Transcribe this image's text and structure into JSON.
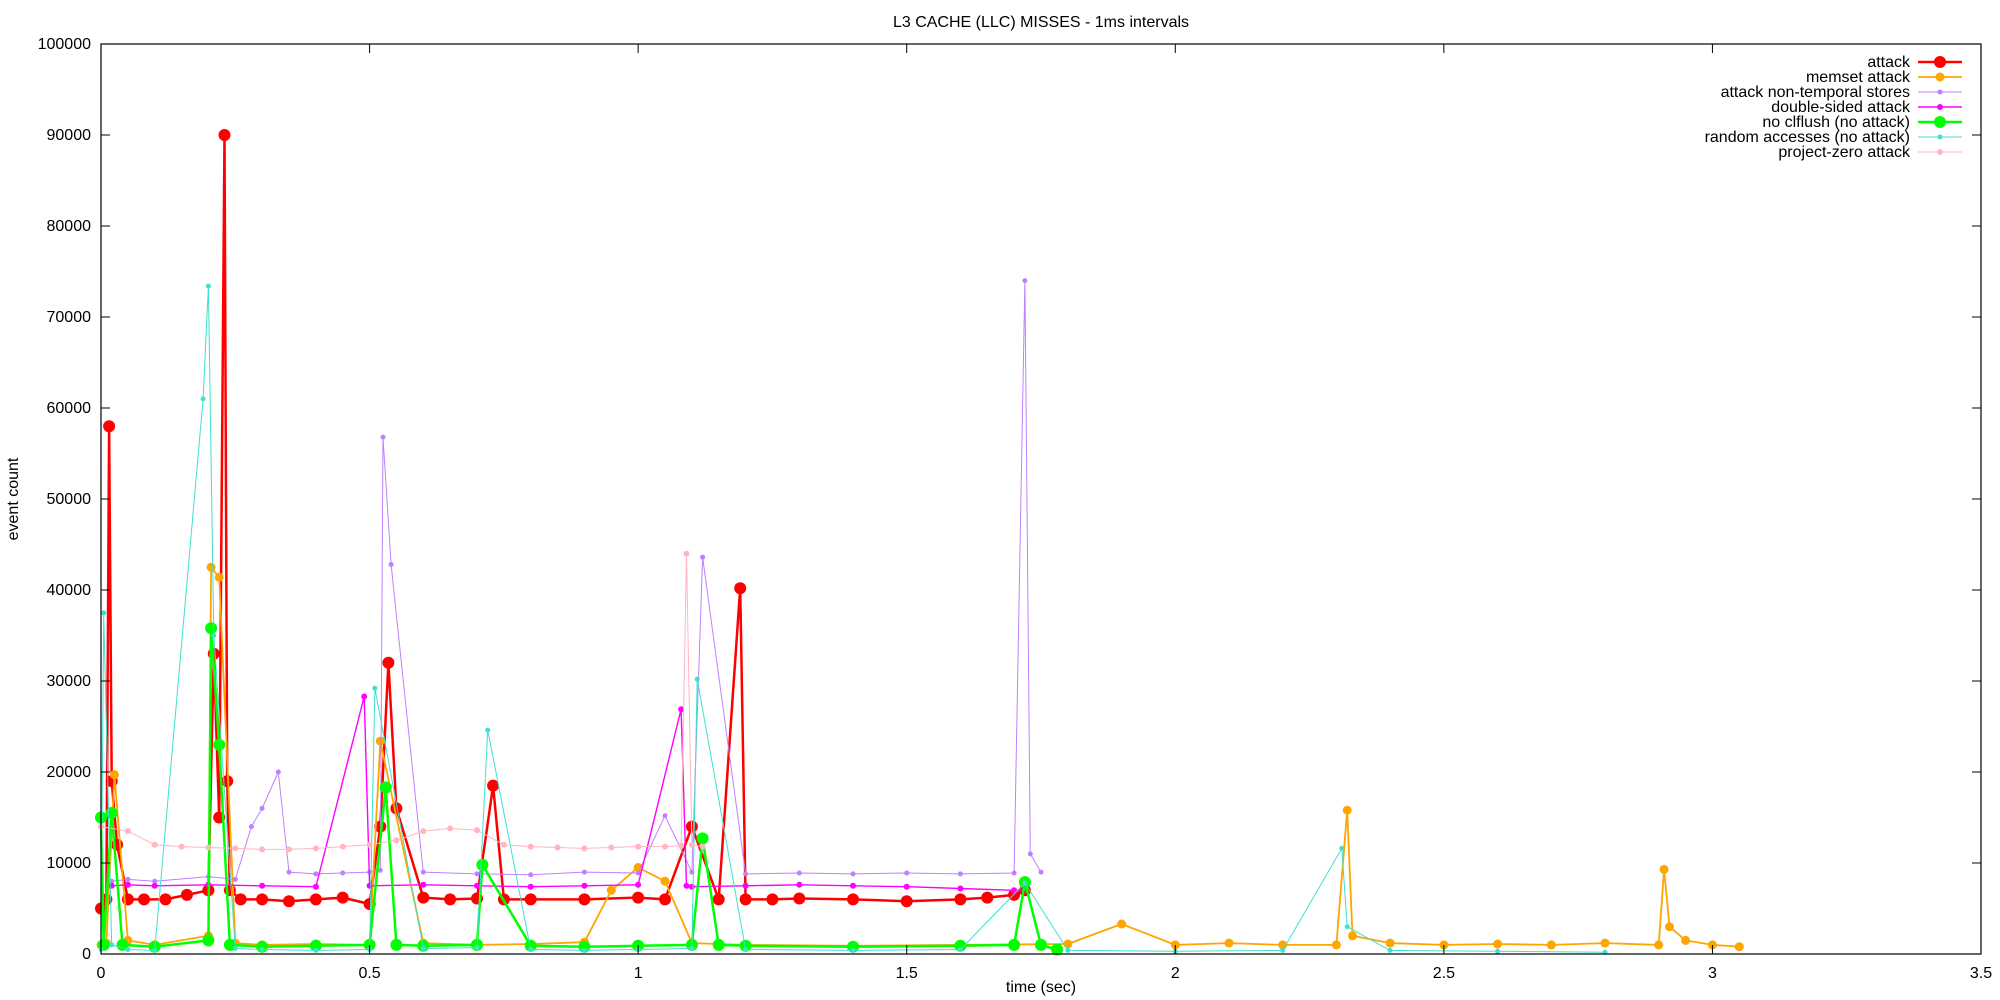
{
  "chart_data": {
    "type": "line",
    "title": "L3 CACHE (LLC) MISSES - 1ms intervals",
    "xlabel": "time (sec)",
    "ylabel": "event count",
    "xlim": [
      0,
      3.5
    ],
    "ylim": [
      0,
      100000
    ],
    "xticks": [
      0,
      0.5,
      1,
      1.5,
      2,
      2.5,
      3,
      3.5
    ],
    "xtick_labels": [
      "0",
      "0.5",
      "1",
      "1.5",
      "2",
      "2.5",
      "3",
      "3.5"
    ],
    "yticks": [
      0,
      10000,
      20000,
      30000,
      40000,
      50000,
      60000,
      70000,
      80000,
      90000,
      100000
    ],
    "ytick_labels": [
      "0",
      "10000",
      "20000",
      "30000",
      "40000",
      "50000",
      "60000",
      "70000",
      "80000",
      "90000",
      "100000"
    ],
    "grid": false,
    "legend_position": "top-right",
    "series": [
      {
        "name": "attack",
        "color": "#ff0000",
        "x": [
          0.0,
          0.01,
          0.015,
          0.02,
          0.03,
          0.05,
          0.08,
          0.12,
          0.16,
          0.2,
          0.21,
          0.22,
          0.23,
          0.235,
          0.24,
          0.26,
          0.3,
          0.35,
          0.4,
          0.45,
          0.5,
          0.52,
          0.535,
          0.55,
          0.6,
          0.65,
          0.7,
          0.73,
          0.75,
          0.8,
          0.9,
          1.0,
          1.05,
          1.1,
          1.15,
          1.19,
          1.2,
          1.25,
          1.3,
          1.4,
          1.5,
          1.6,
          1.65,
          1.7,
          1.72
        ],
        "y": [
          5000,
          6000,
          58000,
          19000,
          12000,
          6000,
          6000,
          6000,
          6500,
          7000,
          33000,
          15000,
          90000,
          19000,
          7000,
          6000,
          6000,
          5800,
          6000,
          6200,
          5500,
          14000,
          32000,
          16000,
          6200,
          6000,
          6100,
          18500,
          6000,
          6000,
          6000,
          6200,
          6000,
          14000,
          6000,
          40200,
          6000,
          6000,
          6100,
          6000,
          5800,
          6000,
          6200,
          6500,
          7000
        ]
      },
      {
        "name": "memset attack",
        "color": "#ffa500",
        "x": [
          0.0,
          0.01,
          0.025,
          0.05,
          0.1,
          0.2,
          0.205,
          0.22,
          0.25,
          0.3,
          0.4,
          0.5,
          0.52,
          0.6,
          0.7,
          0.8,
          0.9,
          0.95,
          1.0,
          1.05,
          1.1,
          1.2,
          1.4,
          1.6,
          1.8,
          1.9,
          2.0,
          2.1,
          2.2,
          2.3,
          2.32,
          2.33,
          2.4,
          2.5,
          2.6,
          2.7,
          2.8,
          2.9,
          2.91,
          2.92,
          2.95,
          3.0,
          3.05
        ],
        "y": [
          1000,
          1200,
          19700,
          1500,
          1000,
          2000,
          42500,
          41400,
          1200,
          1000,
          1100,
          1000,
          23400,
          1200,
          1000,
          1100,
          1300,
          7000,
          9500,
          8000,
          1200,
          1000,
          900,
          1000,
          1100,
          3300,
          1000,
          1200,
          1000,
          1000,
          15800,
          2000,
          1200,
          1000,
          1100,
          1000,
          1200,
          1000,
          9300,
          3000,
          1500,
          1000,
          800
        ]
      },
      {
        "name": "attack non-temporal stores",
        "color": "#bf7fff",
        "x": [
          0.02,
          0.05,
          0.1,
          0.2,
          0.25,
          0.28,
          0.3,
          0.33,
          0.35,
          0.4,
          0.45,
          0.5,
          0.52,
          0.525,
          0.54,
          0.6,
          0.7,
          0.8,
          0.9,
          1.0,
          1.05,
          1.1,
          1.12,
          1.2,
          1.3,
          1.4,
          1.5,
          1.6,
          1.7,
          1.72,
          1.73,
          1.75
        ],
        "y": [
          8000,
          8200,
          8000,
          8500,
          8200,
          14000,
          16000,
          20000,
          9000,
          8800,
          8900,
          9000,
          9200,
          56800,
          42800,
          9000,
          8800,
          8700,
          9000,
          8900,
          15200,
          9000,
          43600,
          8800,
          8900,
          8800,
          8900,
          8800,
          8900,
          74000,
          11000,
          9000
        ]
      },
      {
        "name": "double-sided attack",
        "color": "#ff00ff",
        "x": [
          0.02,
          0.05,
          0.1,
          0.2,
          0.3,
          0.4,
          0.49,
          0.5,
          0.6,
          0.7,
          0.8,
          0.9,
          1.0,
          1.08,
          1.09,
          1.1,
          1.2,
          1.3,
          1.4,
          1.5,
          1.6,
          1.7,
          1.72
        ],
        "y": [
          7500,
          7600,
          7500,
          7600,
          7500,
          7400,
          28300,
          7500,
          7600,
          7500,
          7400,
          7500,
          7600,
          26900,
          7500,
          7400,
          7500,
          7600,
          7500,
          7400,
          7200,
          7000,
          7100
        ]
      },
      {
        "name": "no clflush (no attack)",
        "color": "#00ff00",
        "x": [
          0.0,
          0.005,
          0.02,
          0.04,
          0.1,
          0.2,
          0.205,
          0.22,
          0.24,
          0.3,
          0.4,
          0.5,
          0.53,
          0.55,
          0.6,
          0.7,
          0.71,
          0.8,
          0.9,
          1.0,
          1.1,
          1.12,
          1.15,
          1.2,
          1.4,
          1.6,
          1.7,
          1.72,
          1.75,
          1.78
        ],
        "y": [
          15000,
          1000,
          15500,
          1000,
          800,
          1500,
          35800,
          23000,
          1000,
          800,
          900,
          1000,
          18300,
          1000,
          900,
          1000,
          9800,
          900,
          800,
          900,
          1000,
          12700,
          1000,
          900,
          800,
          900,
          1000,
          7900,
          1000,
          500
        ]
      },
      {
        "name": "random accesses (no attack)",
        "color": "#40e0d0",
        "x": [
          0.0,
          0.005,
          0.02,
          0.05,
          0.1,
          0.19,
          0.2,
          0.21,
          0.25,
          0.3,
          0.4,
          0.5,
          0.51,
          0.6,
          0.7,
          0.72,
          0.8,
          0.9,
          1.0,
          1.1,
          1.11,
          1.2,
          1.4,
          1.6,
          1.72,
          1.8,
          2.0,
          2.2,
          2.31,
          2.32,
          2.4,
          2.6,
          2.8
        ],
        "y": [
          500,
          37500,
          1000,
          500,
          400,
          61000,
          73400,
          35000,
          600,
          500,
          400,
          500,
          29200,
          600,
          700,
          24600,
          500,
          400,
          500,
          600,
          30200,
          500,
          400,
          500,
          7800,
          400,
          300,
          400,
          11600,
          3000,
          400,
          300,
          200
        ]
      },
      {
        "name": "project-zero attack",
        "color": "#ffb6c1",
        "x": [
          0.0,
          0.05,
          0.1,
          0.15,
          0.2,
          0.25,
          0.3,
          0.35,
          0.4,
          0.45,
          0.5,
          0.55,
          0.6,
          0.65,
          0.7,
          0.75,
          0.8,
          0.85,
          0.9,
          0.95,
          1.0,
          1.05,
          1.08,
          1.09,
          1.1,
          1.12
        ],
        "y": [
          14000,
          13500,
          12000,
          11800,
          11700,
          11600,
          11500,
          11500,
          11600,
          11800,
          12000,
          12500,
          13500,
          13800,
          13600,
          12000,
          11800,
          11700,
          11600,
          11700,
          11800,
          11800,
          11900,
          44000,
          12000,
          11800
        ]
      }
    ]
  }
}
